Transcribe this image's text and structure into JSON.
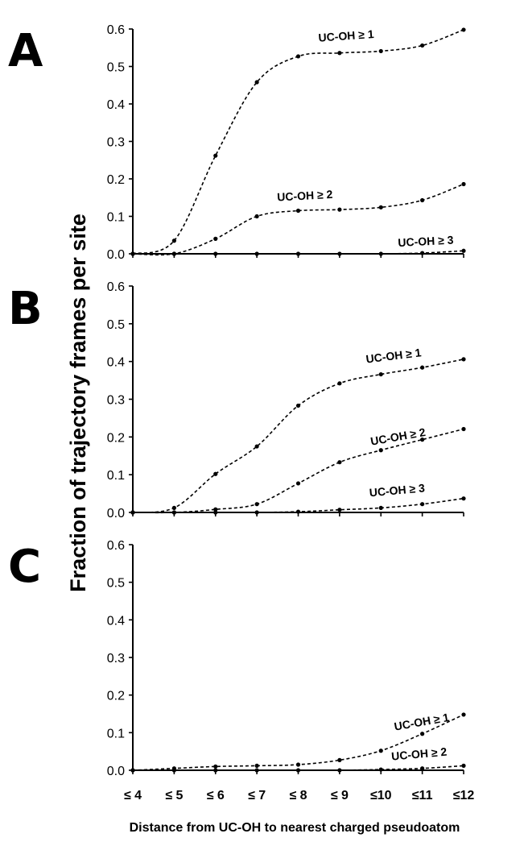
{
  "figure": {
    "ylabel": "Fraction of trajectory frames per site",
    "xlabel": "Distance from UC-OH to nearest charged pseudoatom"
  },
  "chart_data": [
    {
      "panel": "A",
      "type": "line",
      "x": [
        "≤ 4",
        "≤ 5",
        "≤ 6",
        "≤ 7",
        "≤ 8",
        "≤ 9",
        "≤10",
        "≤11",
        "≤12"
      ],
      "ylim": [
        0,
        0.6
      ],
      "yticks": [
        "0.0",
        "0.1",
        "0.2",
        "0.3",
        "0.4",
        "0.5",
        "0.6"
      ],
      "grid": false,
      "series": [
        {
          "name": "UC-OH ≥ 1",
          "values": [
            0.0,
            0.035,
            0.262,
            0.458,
            0.527,
            0.536,
            0.541,
            0.556,
            0.598
          ]
        },
        {
          "name": "UC-OH ≥ 2",
          "values": [
            0.0,
            0.0,
            0.04,
            0.1,
            0.115,
            0.118,
            0.124,
            0.143,
            0.186
          ]
        },
        {
          "name": "UC-OH ≥ 3",
          "values": [
            0.0,
            0.0,
            0.0,
            0.0,
            0.0,
            0.0,
            0.0,
            0.002,
            0.008
          ]
        }
      ]
    },
    {
      "panel": "B",
      "type": "line",
      "x": [
        "≤ 4",
        "≤ 5",
        "≤ 6",
        "≤ 7",
        "≤ 8",
        "≤ 9",
        "≤10",
        "≤11",
        "≤12"
      ],
      "ylim": [
        0,
        0.6
      ],
      "yticks": [
        "0.0",
        "0.1",
        "0.2",
        "0.3",
        "0.4",
        "0.5",
        "0.6"
      ],
      "grid": false,
      "series": [
        {
          "name": "UC-OH ≥ 1",
          "values": [
            0.0,
            0.012,
            0.102,
            0.175,
            0.283,
            0.342,
            0.366,
            0.384,
            0.406
          ]
        },
        {
          "name": "UC-OH ≥ 2",
          "values": [
            0.0,
            0.0,
            0.008,
            0.022,
            0.077,
            0.133,
            0.165,
            0.193,
            0.221
          ]
        },
        {
          "name": "UC-OH ≥ 3",
          "values": [
            0.0,
            0.0,
            0.0,
            0.0,
            0.002,
            0.007,
            0.012,
            0.022,
            0.037
          ]
        }
      ]
    },
    {
      "panel": "C",
      "type": "line",
      "x": [
        "≤ 4",
        "≤ 5",
        "≤ 6",
        "≤ 7",
        "≤ 8",
        "≤ 9",
        "≤10",
        "≤11",
        "≤12"
      ],
      "ylim": [
        0,
        0.6
      ],
      "yticks": [
        "0.0",
        "0.1",
        "0.2",
        "0.3",
        "0.4",
        "0.5",
        "0.6"
      ],
      "grid": false,
      "series": [
        {
          "name": "UC-OH ≥ 1",
          "values": [
            0.0,
            0.005,
            0.01,
            0.012,
            0.015,
            0.027,
            0.052,
            0.097,
            0.148
          ]
        },
        {
          "name": "UC-OH ≥ 2",
          "values": [
            0.0,
            0.0,
            0.0,
            0.0,
            0.0,
            0.0,
            0.002,
            0.005,
            0.012
          ]
        }
      ]
    }
  ]
}
